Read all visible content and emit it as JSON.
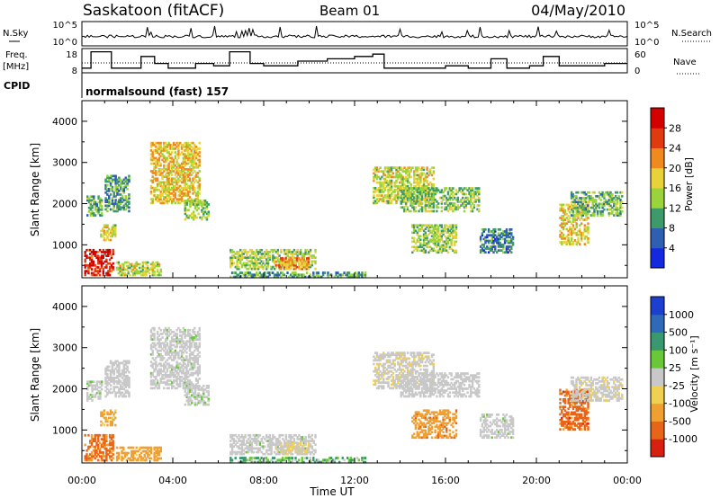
{
  "header": {
    "station": "Saskatoon (fitACF)",
    "beam": "Beam 01",
    "date": "04/May/2010"
  },
  "panels": {
    "nsky": {
      "left_label": "N.Sky",
      "left_ticks": [
        "10^5",
        "10^0"
      ],
      "right_label": "N.Search",
      "right_ticks": [
        "10^5",
        "10^0"
      ]
    },
    "freq": {
      "left_label_1": "Freq.",
      "left_label_2": "[MHz]",
      "left_ticks": [
        "18",
        "8"
      ],
      "right_label": "Nave",
      "right_ticks": [
        "60",
        "0"
      ]
    },
    "cpid": {
      "label": "CPID",
      "value": "normalsound (fast) 157"
    }
  },
  "chart_data": {
    "type": "heatmap",
    "xlabel": "Time UT",
    "x_ticks": [
      "00:00",
      "04:00",
      "08:00",
      "12:00",
      "16:00",
      "20:00",
      "00:00"
    ],
    "ylabel": "Slant Range [km]",
    "y_ticks": [
      1000,
      2000,
      3000,
      4000
    ],
    "ylim": [
      200,
      4500
    ],
    "freq_steps_mhz": [
      [
        0.0,
        10
      ],
      [
        0.4,
        17
      ],
      [
        1.3,
        10
      ],
      [
        2.6,
        15
      ],
      [
        3.2,
        12
      ],
      [
        3.8,
        10
      ],
      [
        5.0,
        12
      ],
      [
        5.8,
        11
      ],
      [
        6.5,
        17
      ],
      [
        7.4,
        12
      ],
      [
        8.0,
        11
      ],
      [
        9.5,
        13
      ],
      [
        10.8,
        14
      ],
      [
        12.0,
        15
      ],
      [
        12.8,
        16
      ],
      [
        13.3,
        10
      ],
      [
        16.0,
        11
      ],
      [
        17.0,
        10
      ],
      [
        18.0,
        14
      ],
      [
        18.7,
        10
      ],
      [
        19.7,
        11
      ],
      [
        20.3,
        15
      ],
      [
        21.0,
        11
      ],
      [
        23.0,
        12
      ],
      [
        24.0,
        12
      ]
    ],
    "echo_regions": [
      {
        "t0": 0.1,
        "t1": 1.4,
        "r0": 250,
        "r1": 900,
        "power": 26,
        "velocity": -400
      },
      {
        "t0": 0.2,
        "t1": 0.9,
        "r0": 1700,
        "r1": 2200,
        "power": 10,
        "velocity": 10
      },
      {
        "t0": 0.8,
        "t1": 1.5,
        "r0": 1100,
        "r1": 1500,
        "power": 14,
        "velocity": -80
      },
      {
        "t0": 1.0,
        "t1": 2.1,
        "r0": 1800,
        "r1": 2700,
        "power": 8,
        "velocity": 0
      },
      {
        "t0": 1.5,
        "t1": 3.5,
        "r0": 250,
        "r1": 600,
        "power": 14,
        "velocity": -150
      },
      {
        "t0": 3.0,
        "t1": 5.2,
        "r0": 2000,
        "r1": 3500,
        "power": 17,
        "velocity": 5
      },
      {
        "t0": 4.5,
        "t1": 5.6,
        "r0": 1600,
        "r1": 2100,
        "power": 12,
        "velocity": 10
      },
      {
        "t0": 6.5,
        "t1": 10.3,
        "r0": 400,
        "r1": 900,
        "power": 13,
        "velocity": 5
      },
      {
        "t0": 8.5,
        "t1": 10.0,
        "r0": 400,
        "r1": 700,
        "power": 20,
        "velocity": -20
      },
      {
        "t0": 6.5,
        "t1": 12.5,
        "r0": 200,
        "r1": 350,
        "power": 8,
        "velocity": 50
      },
      {
        "t0": 12.8,
        "t1": 15.5,
        "r0": 2000,
        "r1": 2900,
        "power": 14,
        "velocity": -10
      },
      {
        "t0": 14.0,
        "t1": 17.5,
        "r0": 1800,
        "r1": 2400,
        "power": 11,
        "velocity": 0
      },
      {
        "t0": 14.5,
        "t1": 16.5,
        "r0": 800,
        "r1": 1500,
        "power": 12,
        "velocity": -200
      },
      {
        "t0": 17.5,
        "t1": 19.0,
        "r0": 800,
        "r1": 1400,
        "power": 6,
        "velocity": 5
      },
      {
        "t0": 21.0,
        "t1": 22.3,
        "r0": 1000,
        "r1": 2000,
        "power": 16,
        "velocity": -500
      },
      {
        "t0": 21.5,
        "t1": 23.8,
        "r0": 1700,
        "r1": 2300,
        "power": 10,
        "velocity": -10
      }
    ],
    "power_scale": {
      "label": "Power [dB]",
      "ticks": [
        "4",
        "8",
        "12",
        "16",
        "20",
        "24",
        "28"
      ],
      "colors": [
        "#1428e0",
        "#2e5fb0",
        "#3f9a6a",
        "#9ad43a",
        "#e8d23a",
        "#f08a1e",
        "#e03a10",
        "#d40000"
      ]
    },
    "velocity_scale": {
      "label": "Velocity [m s⁻¹]",
      "ticks": [
        "1000",
        "500",
        "100",
        "25",
        "-25",
        "-100",
        "-500",
        "-1000"
      ],
      "colors": [
        "#1c3fd0",
        "#2f6ab8",
        "#3a9870",
        "#68c838",
        "#c8c8c8",
        "#f0d050",
        "#f0a030",
        "#e86418",
        "#d82010"
      ]
    }
  }
}
